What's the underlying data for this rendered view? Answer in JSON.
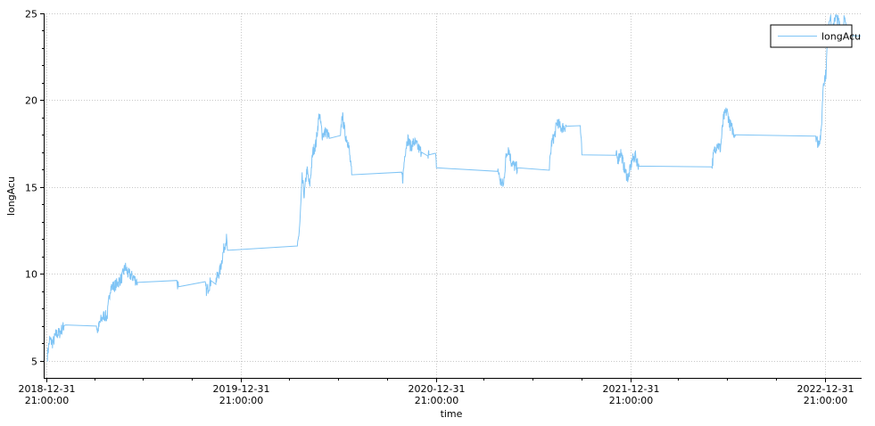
{
  "chart_data": {
    "type": "line",
    "title": "",
    "xlabel": "time",
    "ylabel": "longAcu",
    "ylim": [
      4,
      25
    ],
    "xlim": [
      "2018-12-26",
      "2023-03-10"
    ],
    "yticks": [
      5,
      10,
      15,
      20,
      25
    ],
    "xticks": [
      {
        "x": "2018-12-31",
        "date": "2018-12-31",
        "time": "21:00:00"
      },
      {
        "x": "2019-12-31",
        "date": "2019-12-31",
        "time": "21:00:00"
      },
      {
        "x": "2020-12-31",
        "date": "2020-12-31",
        "time": "21:00:00"
      },
      {
        "x": "2021-12-31",
        "date": "2021-12-31",
        "time": "21:00:00"
      },
      {
        "x": "2022-12-31",
        "date": "2022-12-31",
        "time": "21:00:00"
      }
    ],
    "grid": true,
    "legend": "top-right",
    "colors": {
      "series": "#7fc4f5",
      "grid": "#c8c8c8",
      "axis": "#000000"
    },
    "series": [
      {
        "name": "longAcu",
        "points": [
          [
            "2019-01-02",
            5.3
          ],
          [
            "2019-01-06",
            6.2
          ],
          [
            "2019-01-12",
            6.0
          ],
          [
            "2019-01-18",
            6.5
          ],
          [
            "2019-01-25",
            6.6
          ],
          [
            "2019-02-02",
            7.0
          ],
          [
            "2019-02-05",
            7.05
          ],
          [
            "2019-04-04",
            7.05
          ],
          [
            "2019-04-06",
            6.7
          ],
          [
            "2019-04-12",
            7.3
          ],
          [
            "2019-04-18",
            7.6
          ],
          [
            "2019-04-24",
            7.5
          ],
          [
            "2019-04-30",
            9.2
          ],
          [
            "2019-05-08",
            9.3
          ],
          [
            "2019-05-15",
            9.5
          ],
          [
            "2019-05-22",
            9.8
          ],
          [
            "2019-05-28",
            10.4
          ],
          [
            "2019-06-02",
            10.0
          ],
          [
            "2019-06-12",
            9.8
          ],
          [
            "2019-06-20",
            9.5
          ],
          [
            "2019-09-02",
            9.5
          ],
          [
            "2019-09-05",
            9.25
          ],
          [
            "2019-10-25",
            9.25
          ],
          [
            "2019-10-28",
            9.0
          ],
          [
            "2019-11-05",
            9.6
          ],
          [
            "2019-11-14",
            9.6
          ],
          [
            "2019-11-22",
            10.2
          ],
          [
            "2019-11-30",
            11.6
          ],
          [
            "2019-12-04",
            12.0
          ],
          [
            "2019-12-06",
            11.35
          ],
          [
            "2020-04-15",
            11.35
          ],
          [
            "2020-04-20",
            13.0
          ],
          [
            "2020-04-24",
            15.5
          ],
          [
            "2020-04-28",
            14.5
          ],
          [
            "2020-05-03",
            16.0
          ],
          [
            "2020-05-08",
            15.0
          ],
          [
            "2020-05-14",
            17.0
          ],
          [
            "2020-05-20",
            17.5
          ],
          [
            "2020-05-26",
            19.2
          ],
          [
            "2020-06-01",
            18.0
          ],
          [
            "2020-06-08",
            18.2
          ],
          [
            "2020-06-14",
            17.8
          ],
          [
            "2020-07-05",
            17.8
          ],
          [
            "2020-07-08",
            19.2
          ],
          [
            "2020-07-14",
            18.0
          ],
          [
            "2020-07-20",
            17.5
          ],
          [
            "2020-07-26",
            15.7
          ],
          [
            "2020-10-28",
            15.7
          ],
          [
            "2020-10-30",
            15.5
          ],
          [
            "2020-11-03",
            17.0
          ],
          [
            "2020-11-08",
            17.8
          ],
          [
            "2020-11-14",
            17.3
          ],
          [
            "2020-11-20",
            17.6
          ],
          [
            "2020-11-27",
            17.3
          ],
          [
            "2020-12-04",
            17.0
          ],
          [
            "2020-12-16",
            17.0
          ],
          [
            "2020-12-18",
            16.85
          ],
          [
            "2020-12-30",
            16.85
          ],
          [
            "2021-01-01",
            16.1
          ],
          [
            "2021-04-26",
            16.1
          ],
          [
            "2021-05-01",
            15.3
          ],
          [
            "2021-05-07",
            15.1
          ],
          [
            "2021-05-11",
            16.6
          ],
          [
            "2021-05-16",
            17.3
          ],
          [
            "2021-05-21",
            16.5
          ],
          [
            "2021-05-27",
            16.2
          ],
          [
            "2021-06-02",
            16.1
          ],
          [
            "2021-08-01",
            16.1
          ],
          [
            "2021-08-05",
            17.5
          ],
          [
            "2021-08-11",
            18.0
          ],
          [
            "2021-08-16",
            18.8
          ],
          [
            "2021-08-22",
            18.4
          ],
          [
            "2021-09-02",
            18.5
          ],
          [
            "2021-09-28",
            18.5
          ],
          [
            "2021-10-01",
            16.85
          ],
          [
            "2021-12-04",
            16.85
          ],
          [
            "2021-12-08",
            16.6
          ],
          [
            "2021-12-13",
            17.0
          ],
          [
            "2021-12-18",
            16.3
          ],
          [
            "2021-12-22",
            15.8
          ],
          [
            "2021-12-27",
            15.5
          ],
          [
            "2022-01-03",
            16.5
          ],
          [
            "2022-01-09",
            16.8
          ],
          [
            "2022-01-16",
            16.2
          ],
          [
            "2022-06-02",
            16.2
          ],
          [
            "2022-06-06",
            17.0
          ],
          [
            "2022-06-12",
            17.5
          ],
          [
            "2022-06-18",
            17.2
          ],
          [
            "2022-06-24",
            19.0
          ],
          [
            "2022-06-30",
            19.4
          ],
          [
            "2022-07-06",
            18.6
          ],
          [
            "2022-07-12",
            18.2
          ],
          [
            "2022-07-16",
            18.0
          ],
          [
            "2022-12-14",
            18.0
          ],
          [
            "2022-12-18",
            17.5
          ],
          [
            "2022-12-24",
            18.0
          ],
          [
            "2022-12-28",
            21.0
          ],
          [
            "2023-01-02",
            21.5
          ],
          [
            "2023-01-06",
            24.2
          ],
          [
            "2023-01-10",
            25.0
          ],
          [
            "2023-01-14",
            23.6
          ],
          [
            "2023-01-18",
            24.8
          ],
          [
            "2023-01-24",
            24.6
          ],
          [
            "2023-02-02",
            24.0
          ],
          [
            "2023-02-05",
            24.7
          ],
          [
            "2023-02-12",
            23.7
          ],
          [
            "2023-03-08",
            23.7
          ]
        ]
      }
    ]
  }
}
